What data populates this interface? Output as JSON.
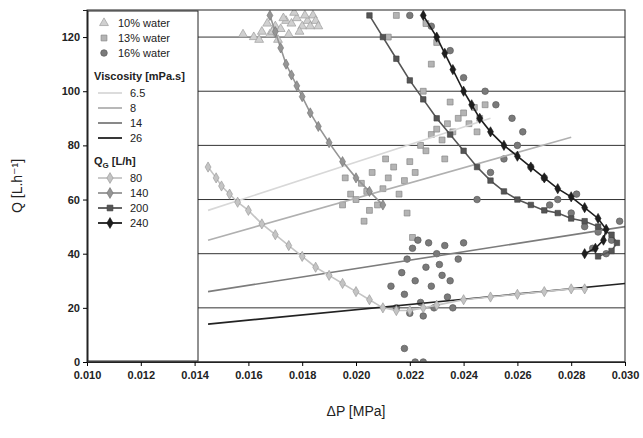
{
  "chart_data": {
    "type": "scatter",
    "x_label": "ΔP [MPa]",
    "y_label": "Q [L.h⁻¹]",
    "xlim": [
      0.01,
      0.03
    ],
    "ylim": [
      0,
      130
    ],
    "xticks": [
      {
        "value": 0.01,
        "label": "0.010"
      },
      0.012,
      0.014,
      0.016,
      0.018,
      {
        "value": 0.02,
        "label": "0.020"
      },
      0.022,
      0.024,
      0.026,
      0.028,
      {
        "value": 0.03,
        "label": "0.030"
      }
    ],
    "yticks": [
      0,
      20,
      40,
      60,
      80,
      100,
      120
    ],
    "grid": true,
    "legend": "upper left",
    "legend_groups": [
      {
        "members": [
          "10% water",
          "13% water",
          "16% water"
        ]
      },
      {
        "title": "Viscosity [mPa.s]",
        "members": [
          "6.5",
          "8",
          "14",
          "26"
        ]
      },
      {
        "title": "Q",
        "title_sub": "G",
        "title_rest": " [L/h]",
        "members": [
          "80",
          "140",
          "200",
          "240"
        ]
      }
    ],
    "series": [
      {
        "name": "10% water",
        "type": "scatter",
        "marker": "triangle",
        "color": "#d0d0d0",
        "x": [
          0.0162,
          0.0165,
          0.0168,
          0.017,
          0.0172,
          0.0174,
          0.0176,
          0.0178,
          0.018,
          0.0182,
          0.0184,
          0.0171,
          0.0175,
          0.0179,
          0.0183,
          0.0167,
          0.0177,
          0.0185,
          0.0169,
          0.0173,
          0.0181,
          0.0158,
          0.0164,
          0.0186
        ],
        "values": [
          120,
          122,
          121,
          124,
          123,
          126,
          125,
          127,
          124,
          126,
          128,
          119,
          121,
          122,
          124,
          125,
          129,
          126,
          122,
          127,
          128,
          121,
          119,
          124
        ]
      },
      {
        "name": "13% water",
        "type": "scatter",
        "marker": "square",
        "color": "#b4b4b4",
        "x": [
          0.0195,
          0.0198,
          0.02,
          0.0202,
          0.0204,
          0.0206,
          0.0208,
          0.021,
          0.0212,
          0.0214,
          0.0216,
          0.0218,
          0.022,
          0.0205,
          0.0211,
          0.0222,
          0.0224,
          0.0226,
          0.0228,
          0.023,
          0.0232,
          0.0234,
          0.0236,
          0.0238,
          0.024,
          0.0242,
          0.0244,
          0.0246,
          0.0248,
          0.0225,
          0.0228,
          0.023,
          0.0226,
          0.0215,
          0.0212,
          0.0235,
          0.0203,
          0.0219,
          0.0196,
          0.0245,
          0.0233,
          0.0221
        ],
        "values": [
          58,
          62,
          60,
          66,
          63,
          70,
          58,
          64,
          68,
          72,
          62,
          67,
          74,
          56,
          75,
          70,
          80,
          78,
          84,
          86,
          82,
          88,
          85,
          90,
          92,
          88,
          94,
          90,
          95,
          100,
          110,
          118,
          125,
          128,
          120,
          96,
          52,
          55,
          68,
          85,
          75,
          46
        ]
      },
      {
        "name": "16% water",
        "type": "scatter",
        "marker": "circle",
        "color": "#7a7a7a",
        "x": [
          0.0215,
          0.0218,
          0.022,
          0.0222,
          0.0224,
          0.0226,
          0.0228,
          0.023,
          0.0232,
          0.0234,
          0.0219,
          0.0221,
          0.0223,
          0.0225,
          0.0227,
          0.0229,
          0.0231,
          0.0233,
          0.0217,
          0.0235,
          0.0236,
          0.0238,
          0.024,
          0.0213,
          0.0222,
          0.0225,
          0.0218,
          0.0245,
          0.025,
          0.0255,
          0.026,
          0.0265,
          0.027,
          0.0275,
          0.028,
          0.0285,
          0.029,
          0.0295,
          0.0298,
          0.0288,
          0.0248,
          0.0252,
          0.0258,
          0.0262,
          0.024,
          0.0235,
          0.0228,
          0.022,
          0.0272,
          0.0293,
          0.0282
        ],
        "values": [
          20,
          25,
          18,
          30,
          22,
          35,
          28,
          40,
          32,
          24,
          38,
          42,
          45,
          17,
          44,
          20,
          36,
          43,
          33,
          30,
          20,
          38,
          44,
          28,
          0,
          0,
          5,
          60,
          70,
          75,
          80,
          72,
          68,
          60,
          55,
          50,
          48,
          45,
          52,
          42,
          100,
          95,
          90,
          85,
          105,
          115,
          124,
          128,
          58,
          40,
          62
        ]
      },
      {
        "name": "6.5",
        "type": "line",
        "marker": "none",
        "line_style": "solid",
        "color": "#d8d8d8",
        "x": [
          0.0145,
          0.025
        ],
        "values": [
          56,
          90
        ]
      },
      {
        "name": "8",
        "type": "line",
        "marker": "none",
        "line_style": "solid",
        "color": "#b0b0b0",
        "x": [
          0.0145,
          0.028
        ],
        "values": [
          45,
          83
        ]
      },
      {
        "name": "14",
        "type": "line",
        "marker": "none",
        "line_style": "solid",
        "color": "#7c7c7c",
        "x": [
          0.0145,
          0.03
        ],
        "values": [
          26,
          50
        ]
      },
      {
        "name": "26",
        "type": "line",
        "marker": "none",
        "line_style": "solid",
        "color": "#222222",
        "x": [
          0.0145,
          0.03
        ],
        "values": [
          14,
          29
        ]
      },
      {
        "name": "80",
        "type": "line",
        "marker": "diamond",
        "line_style": "solid",
        "color": "#c4c4c4",
        "x": [
          0.0145,
          0.0148,
          0.015,
          0.0153,
          0.0156,
          0.016,
          0.0165,
          0.017,
          0.0175,
          0.018,
          0.0185,
          0.019,
          0.0195,
          0.02,
          0.0205,
          0.021,
          0.0215,
          0.022,
          0.0225,
          0.023,
          0.024,
          0.025,
          0.026,
          0.027,
          0.028,
          0.0285
        ],
        "values": [
          72,
          68,
          65,
          62,
          59,
          56,
          51,
          47,
          43,
          39,
          35,
          32,
          29,
          26,
          23,
          20,
          19,
          19,
          20,
          21,
          23,
          24,
          25,
          26,
          27,
          27
        ]
      },
      {
        "name": "140",
        "type": "line",
        "marker": "diamond",
        "line_style": "solid",
        "color": "#959595",
        "x": [
          0.0168,
          0.017,
          0.0172,
          0.0174,
          0.0176,
          0.0178,
          0.018,
          0.0183,
          0.0186,
          0.019,
          0.0195,
          0.02,
          0.0205,
          0.021
        ],
        "values": [
          128,
          122,
          116,
          110,
          106,
          102,
          98,
          92,
          87,
          81,
          74,
          68,
          63,
          58
        ]
      },
      {
        "name": "200",
        "type": "line",
        "marker": "square",
        "line_style": "solid",
        "color": "#555555",
        "x": [
          0.0205,
          0.021,
          0.0215,
          0.022,
          0.0225,
          0.023,
          0.0235,
          0.024,
          0.0245,
          0.025,
          0.0255,
          0.026,
          0.0265,
          0.027,
          0.0275,
          0.028,
          0.0285,
          0.029,
          0.0295,
          0.0297,
          0.0295,
          0.029
        ],
        "values": [
          128,
          120,
          112,
          104,
          97,
          90,
          84,
          78,
          72,
          67,
          63,
          60,
          58,
          56,
          55,
          53,
          52,
          50,
          47,
          44,
          41,
          39
        ]
      },
      {
        "name": "240",
        "type": "line",
        "marker": "diamond",
        "line_style": "solid",
        "color": "#1e1e1e",
        "x": [
          0.0225,
          0.023,
          0.0233,
          0.0236,
          0.024,
          0.0243,
          0.0246,
          0.025,
          0.0255,
          0.026,
          0.0265,
          0.027,
          0.0275,
          0.028,
          0.0285,
          0.029,
          0.0293,
          0.0292,
          0.0289,
          0.0285
        ],
        "values": [
          128,
          120,
          114,
          108,
          100,
          95,
          90,
          85,
          80,
          76,
          72,
          68,
          64,
          61,
          57,
          53,
          49,
          45,
          42,
          40
        ]
      }
    ]
  }
}
